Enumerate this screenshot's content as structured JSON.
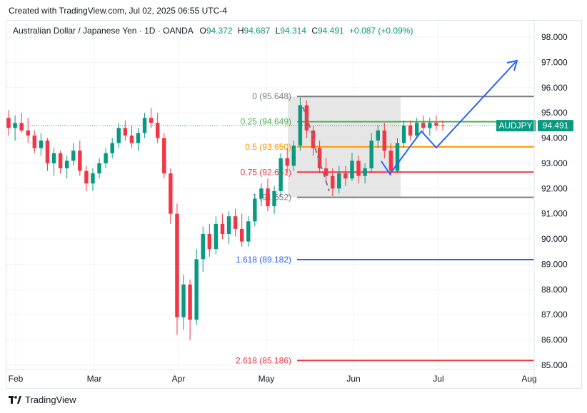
{
  "credit": "Created with TradingView.com, Jul 02, 2025 06:55 UTC-4",
  "legend": {
    "title": "Australian Dollar / Japanese Yen · 1D · OANDA",
    "o_label": "O",
    "o_value": "94.372",
    "h_label": "H",
    "h_value": "94.687",
    "l_label": "L",
    "l_value": "94.314",
    "c_label": "C",
    "c_value": "94.491",
    "change": "+0.087 (+0.09%)"
  },
  "footer": {
    "brand": "TradingView",
    "logo_icon": "tradingview-logo-icon"
  },
  "colors": {
    "up": "#089981",
    "down": "#f23645",
    "fib0": "#787b86",
    "fib025": "#4caf50",
    "fib05": "#ff9800",
    "fib075": "#f23645",
    "fib1618": "#2962ff",
    "fib2618": "#f23645",
    "arrow": "#2962ff",
    "zone": "#e0e0e0",
    "price_tag": "#089981"
  },
  "chart_data": {
    "type": "candlestick",
    "symbol": "AUDJPY",
    "last_price": "94.491",
    "price_level": 94.491,
    "y_ticks": [
      "98.000",
      "97.000",
      "96.000",
      "95.000",
      "94.000",
      "93.000",
      "92.000",
      "91.000",
      "90.000",
      "89.000",
      "88.000",
      "87.000",
      "86.000",
      "85.000"
    ],
    "ylim": [
      84.9,
      98.6
    ],
    "x_ticks": [
      "Feb",
      "Mar",
      "Apr",
      "May",
      "Jun",
      "Jul",
      "Aug"
    ],
    "fib_levels": [
      {
        "ratio": "0",
        "value": "95.648",
        "price": 95.648,
        "color": "#787b86"
      },
      {
        "ratio": "0.25",
        "value": "94.649",
        "price": 94.649,
        "color": "#4caf50"
      },
      {
        "ratio": "0.5",
        "value": "93.650",
        "price": 93.65,
        "color": "#ff9800"
      },
      {
        "ratio": "0.75",
        "value": "92.651",
        "price": 92.651,
        "color": "#f23645"
      },
      {
        "ratio": "1",
        "value": "91.652",
        "price": 91.652,
        "color": "#787b86"
      },
      {
        "ratio": "1.618",
        "value": "89.182",
        "price": 89.182,
        "color": "#2962ff"
      },
      {
        "ratio": "2.618",
        "value": "85.186",
        "price": 85.186,
        "color": "#f23645"
      }
    ],
    "candles": [
      {
        "o": 94.8,
        "h": 95.1,
        "l": 94.1,
        "c": 94.4
      },
      {
        "o": 94.4,
        "h": 94.9,
        "l": 93.9,
        "c": 94.6
      },
      {
        "o": 94.6,
        "h": 95.0,
        "l": 94.2,
        "c": 94.3
      },
      {
        "o": 94.3,
        "h": 94.8,
        "l": 93.8,
        "c": 94.1
      },
      {
        "o": 94.1,
        "h": 94.3,
        "l": 93.4,
        "c": 93.6
      },
      {
        "o": 93.6,
        "h": 94.2,
        "l": 93.3,
        "c": 93.9
      },
      {
        "o": 93.9,
        "h": 94.0,
        "l": 92.7,
        "c": 93.0
      },
      {
        "o": 93.0,
        "h": 93.6,
        "l": 92.5,
        "c": 93.4
      },
      {
        "o": 93.4,
        "h": 93.5,
        "l": 92.6,
        "c": 92.8
      },
      {
        "o": 92.8,
        "h": 93.3,
        "l": 92.4,
        "c": 93.1
      },
      {
        "o": 93.1,
        "h": 93.8,
        "l": 92.9,
        "c": 93.5
      },
      {
        "o": 93.5,
        "h": 93.9,
        "l": 92.5,
        "c": 92.7
      },
      {
        "o": 92.7,
        "h": 92.9,
        "l": 91.9,
        "c": 92.2
      },
      {
        "o": 92.2,
        "h": 92.8,
        "l": 91.9,
        "c": 92.6
      },
      {
        "o": 92.6,
        "h": 93.2,
        "l": 92.4,
        "c": 93.0
      },
      {
        "o": 93.0,
        "h": 93.6,
        "l": 92.8,
        "c": 93.4
      },
      {
        "o": 93.4,
        "h": 94.0,
        "l": 93.2,
        "c": 93.8
      },
      {
        "o": 93.8,
        "h": 94.6,
        "l": 93.6,
        "c": 94.4
      },
      {
        "o": 94.4,
        "h": 94.7,
        "l": 93.9,
        "c": 94.1
      },
      {
        "o": 94.1,
        "h": 94.5,
        "l": 93.6,
        "c": 93.8
      },
      {
        "o": 93.8,
        "h": 94.4,
        "l": 93.5,
        "c": 94.2
      },
      {
        "o": 94.2,
        "h": 95.0,
        "l": 94.0,
        "c": 94.8
      },
      {
        "o": 94.8,
        "h": 95.2,
        "l": 94.4,
        "c": 94.6
      },
      {
        "o": 94.6,
        "h": 95.0,
        "l": 93.8,
        "c": 94.0
      },
      {
        "o": 94.0,
        "h": 94.2,
        "l": 92.4,
        "c": 92.6
      },
      {
        "o": 92.6,
        "h": 92.8,
        "l": 90.6,
        "c": 91.0
      },
      {
        "o": 91.0,
        "h": 91.4,
        "l": 86.2,
        "c": 86.9
      },
      {
        "o": 86.9,
        "h": 88.6,
        "l": 86.4,
        "c": 88.2
      },
      {
        "o": 88.2,
        "h": 88.4,
        "l": 86.0,
        "c": 86.8
      },
      {
        "o": 86.8,
        "h": 89.6,
        "l": 86.6,
        "c": 89.2
      },
      {
        "o": 89.2,
        "h": 90.5,
        "l": 88.7,
        "c": 90.2
      },
      {
        "o": 90.2,
        "h": 90.6,
        "l": 89.3,
        "c": 89.6
      },
      {
        "o": 89.6,
        "h": 90.9,
        "l": 89.4,
        "c": 90.6
      },
      {
        "o": 90.6,
        "h": 91.0,
        "l": 90.0,
        "c": 90.2
      },
      {
        "o": 90.2,
        "h": 91.1,
        "l": 89.8,
        "c": 90.9
      },
      {
        "o": 90.9,
        "h": 91.2,
        "l": 90.1,
        "c": 90.4
      },
      {
        "o": 90.4,
        "h": 91.0,
        "l": 89.7,
        "c": 89.9
      },
      {
        "o": 89.9,
        "h": 90.9,
        "l": 89.7,
        "c": 90.7
      },
      {
        "o": 90.7,
        "h": 91.8,
        "l": 90.5,
        "c": 91.6
      },
      {
        "o": 91.6,
        "h": 92.2,
        "l": 91.3,
        "c": 92.0
      },
      {
        "o": 92.0,
        "h": 92.4,
        "l": 91.1,
        "c": 91.3
      },
      {
        "o": 91.3,
        "h": 92.1,
        "l": 91.0,
        "c": 91.9
      },
      {
        "o": 91.9,
        "h": 93.4,
        "l": 91.7,
        "c": 93.2
      },
      {
        "o": 93.2,
        "h": 93.6,
        "l": 92.6,
        "c": 92.9
      },
      {
        "o": 92.9,
        "h": 93.9,
        "l": 92.7,
        "c": 93.7
      },
      {
        "o": 93.7,
        "h": 95.6,
        "l": 93.5,
        "c": 95.3
      },
      {
        "o": 95.3,
        "h": 95.5,
        "l": 94.0,
        "c": 94.3
      },
      {
        "o": 94.3,
        "h": 94.5,
        "l": 93.3,
        "c": 93.6
      },
      {
        "o": 93.6,
        "h": 93.9,
        "l": 92.6,
        "c": 92.8
      },
      {
        "o": 92.8,
        "h": 93.2,
        "l": 92.2,
        "c": 92.5
      },
      {
        "o": 92.5,
        "h": 92.8,
        "l": 91.7,
        "c": 92.0
      },
      {
        "o": 92.0,
        "h": 92.9,
        "l": 91.8,
        "c": 92.6
      },
      {
        "o": 92.6,
        "h": 92.9,
        "l": 92.1,
        "c": 92.4
      },
      {
        "o": 92.4,
        "h": 93.4,
        "l": 92.3,
        "c": 93.1
      },
      {
        "o": 93.1,
        "h": 93.3,
        "l": 92.2,
        "c": 92.5
      },
      {
        "o": 92.5,
        "h": 93.0,
        "l": 92.2,
        "c": 92.8
      },
      {
        "o": 92.8,
        "h": 94.2,
        "l": 92.6,
        "c": 93.9
      },
      {
        "o": 93.9,
        "h": 94.5,
        "l": 93.6,
        "c": 94.3
      },
      {
        "o": 94.3,
        "h": 94.6,
        "l": 93.2,
        "c": 93.5
      },
      {
        "o": 93.5,
        "h": 93.8,
        "l": 92.5,
        "c": 92.7
      },
      {
        "o": 92.7,
        "h": 94.0,
        "l": 92.6,
        "c": 93.8
      },
      {
        "o": 93.8,
        "h": 94.7,
        "l": 93.6,
        "c": 94.5
      },
      {
        "o": 94.5,
        "h": 94.7,
        "l": 93.9,
        "c": 94.1
      },
      {
        "o": 94.1,
        "h": 94.8,
        "l": 94.0,
        "c": 94.6
      },
      {
        "o": 94.6,
        "h": 94.9,
        "l": 94.2,
        "c": 94.4
      },
      {
        "o": 94.4,
        "h": 94.8,
        "l": 94.1,
        "c": 94.6
      },
      {
        "o": 94.6,
        "h": 94.9,
        "l": 94.3,
        "c": 94.5
      },
      {
        "o": 94.5,
        "h": 94.7,
        "l": 94.3,
        "c": 94.49
      }
    ]
  }
}
